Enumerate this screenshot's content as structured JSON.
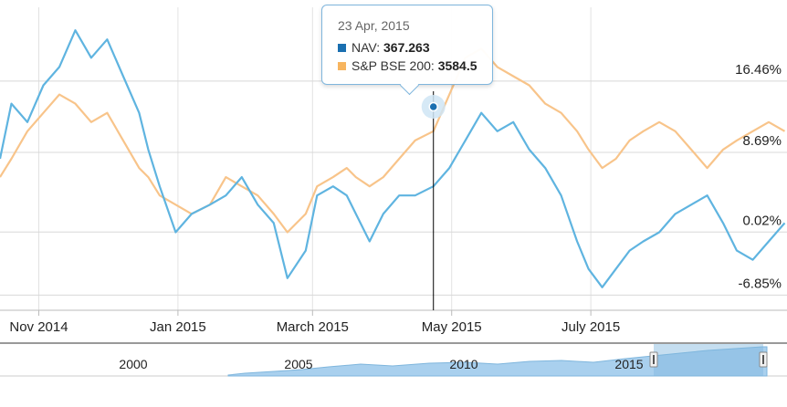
{
  "chart_data": {
    "type": "line",
    "series": [
      {
        "name": "NAV",
        "color": "#5fb4e0",
        "points": [
          [
            "2014-10-15",
            8
          ],
          [
            "2014-10-20",
            14
          ],
          [
            "2014-10-27",
            12
          ],
          [
            "2014-11-03",
            16
          ],
          [
            "2014-11-10",
            18
          ],
          [
            "2014-11-17",
            22
          ],
          [
            "2014-11-24",
            19
          ],
          [
            "2014-12-01",
            21
          ],
          [
            "2014-12-08",
            17
          ],
          [
            "2014-12-15",
            13
          ],
          [
            "2014-12-19",
            9
          ],
          [
            "2014-12-24",
            5
          ],
          [
            "2014-12-31",
            0
          ],
          [
            "2015-01-07",
            2
          ],
          [
            "2015-01-15",
            3
          ],
          [
            "2015-01-22",
            4
          ],
          [
            "2015-01-29",
            6
          ],
          [
            "2015-02-05",
            3
          ],
          [
            "2015-02-12",
            1
          ],
          [
            "2015-02-18",
            -5
          ],
          [
            "2015-02-26",
            -2
          ],
          [
            "2015-03-03",
            4
          ],
          [
            "2015-03-10",
            5
          ],
          [
            "2015-03-16",
            4
          ],
          [
            "2015-03-20",
            2
          ],
          [
            "2015-03-26",
            -1
          ],
          [
            "2015-04-01",
            2
          ],
          [
            "2015-04-08",
            4
          ],
          [
            "2015-04-15",
            4
          ],
          [
            "2015-04-23",
            5
          ],
          [
            "2015-04-30",
            7
          ],
          [
            "2015-05-07",
            10
          ],
          [
            "2015-05-14",
            13
          ],
          [
            "2015-05-21",
            11
          ],
          [
            "2015-05-28",
            12
          ],
          [
            "2015-06-04",
            9
          ],
          [
            "2015-06-11",
            7
          ],
          [
            "2015-06-18",
            4
          ],
          [
            "2015-06-25",
            -1
          ],
          [
            "2015-06-30",
            -4
          ],
          [
            "2015-07-06",
            -6
          ],
          [
            "2015-07-12",
            -4
          ],
          [
            "2015-07-18",
            -2
          ],
          [
            "2015-07-24",
            -1
          ],
          [
            "2015-07-31",
            0
          ],
          [
            "2015-08-07",
            2
          ],
          [
            "2015-08-14",
            3
          ],
          [
            "2015-08-21",
            4
          ],
          [
            "2015-08-28",
            1
          ],
          [
            "2015-09-03",
            -2
          ],
          [
            "2015-09-10",
            -3
          ],
          [
            "2015-09-17",
            -1
          ],
          [
            "2015-09-24",
            1
          ]
        ]
      },
      {
        "name": "S&P BSE 200",
        "color": "#f8c48a",
        "points": [
          [
            "2014-10-15",
            6
          ],
          [
            "2014-10-20",
            8
          ],
          [
            "2014-10-27",
            11
          ],
          [
            "2014-11-03",
            13
          ],
          [
            "2014-11-10",
            15
          ],
          [
            "2014-11-17",
            14
          ],
          [
            "2014-11-24",
            12
          ],
          [
            "2014-12-01",
            13
          ],
          [
            "2014-12-08",
            10
          ],
          [
            "2014-12-15",
            7
          ],
          [
            "2014-12-19",
            6
          ],
          [
            "2014-12-24",
            4
          ],
          [
            "2014-12-31",
            3
          ],
          [
            "2015-01-07",
            2
          ],
          [
            "2015-01-15",
            3
          ],
          [
            "2015-01-22",
            6
          ],
          [
            "2015-01-29",
            5
          ],
          [
            "2015-02-05",
            4
          ],
          [
            "2015-02-12",
            2
          ],
          [
            "2015-02-18",
            0
          ],
          [
            "2015-02-26",
            2
          ],
          [
            "2015-03-03",
            5
          ],
          [
            "2015-03-10",
            6
          ],
          [
            "2015-03-16",
            7
          ],
          [
            "2015-03-20",
            6
          ],
          [
            "2015-03-26",
            5
          ],
          [
            "2015-04-01",
            6
          ],
          [
            "2015-04-08",
            8
          ],
          [
            "2015-04-15",
            10
          ],
          [
            "2015-04-23",
            11
          ],
          [
            "2015-04-30",
            15
          ],
          [
            "2015-05-07",
            19
          ],
          [
            "2015-05-14",
            20
          ],
          [
            "2015-05-21",
            18
          ],
          [
            "2015-05-28",
            17
          ],
          [
            "2015-06-04",
            16
          ],
          [
            "2015-06-11",
            14
          ],
          [
            "2015-06-18",
            13
          ],
          [
            "2015-06-25",
            11
          ],
          [
            "2015-06-30",
            9
          ],
          [
            "2015-07-06",
            7
          ],
          [
            "2015-07-12",
            8
          ],
          [
            "2015-07-18",
            10
          ],
          [
            "2015-07-24",
            11
          ],
          [
            "2015-07-31",
            12
          ],
          [
            "2015-08-07",
            11
          ],
          [
            "2015-08-14",
            9
          ],
          [
            "2015-08-21",
            7
          ],
          [
            "2015-08-28",
            9
          ],
          [
            "2015-09-03",
            10
          ],
          [
            "2015-09-10",
            11
          ],
          [
            "2015-09-17",
            12
          ],
          [
            "2015-09-24",
            11
          ]
        ]
      }
    ],
    "x_tick_labels": [
      "Nov 2014",
      "Jan 2015",
      "March 2015",
      "May 2015",
      "July 2015"
    ],
    "x_ticks": [
      "2014-11-01",
      "2015-01-01",
      "2015-03-01",
      "2015-05-01",
      "2015-07-01"
    ],
    "y_tick_labels": [
      "16.46%",
      "8.69%",
      "0.02%",
      "-6.85%"
    ],
    "y_ticks": [
      16.46,
      8.69,
      0.02,
      -6.85
    ],
    "ylim": [
      -8.5,
      24.5
    ],
    "xlim": [
      "2014-10-15",
      "2015-09-25"
    ],
    "legend": "none",
    "grid": true
  },
  "tooltip": {
    "date": "23 Apr, 2015",
    "row1_label": "NAV: ",
    "row1_value": "367.263",
    "row2_label": "S&P BSE 200: ",
    "row2_value": "3584.5",
    "crosshair_date": "2015-04-23",
    "nav_colour": "#1a6fb0",
    "bse_colour": "#f7b55f"
  },
  "navigator": {
    "labels": [
      "2000",
      "2005",
      "2010",
      "2015"
    ],
    "years": [
      2000,
      2005,
      2010,
      2015
    ]
  }
}
